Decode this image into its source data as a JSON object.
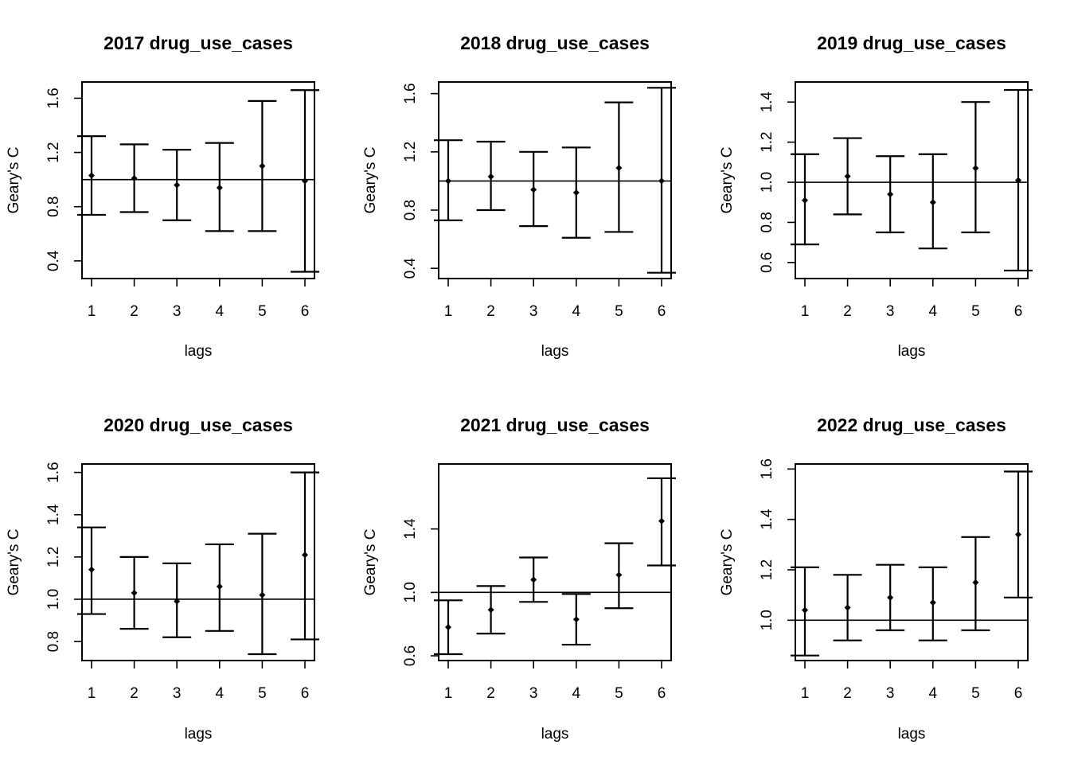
{
  "chart_data": [
    {
      "type": "scatter",
      "title": "2017 drug_use_cases",
      "xlabel": "lags",
      "ylabel": "Geary's C",
      "x": [
        1,
        2,
        3,
        4,
        5,
        6
      ],
      "x_ticks": [
        "1",
        "2",
        "3",
        "4",
        "5",
        "6"
      ],
      "y_ticks": [
        0.4,
        0.8,
        1.2,
        1.6
      ],
      "y_tick_labels": [
        "0.4",
        "0.8",
        "1.2",
        "1.6"
      ],
      "ylim": [
        0.27,
        1.72
      ],
      "reference_line": 1.0,
      "values": [
        1.03,
        1.01,
        0.96,
        0.94,
        1.1,
        0.99
      ],
      "lower": [
        0.74,
        0.76,
        0.7,
        0.62,
        0.62,
        0.32
      ],
      "upper": [
        1.32,
        1.26,
        1.22,
        1.27,
        1.58,
        1.66
      ],
      "grid": false
    },
    {
      "type": "scatter",
      "title": "2018 drug_use_cases",
      "xlabel": "lags",
      "ylabel": "Geary's C",
      "x": [
        1,
        2,
        3,
        4,
        5,
        6
      ],
      "x_ticks": [
        "1",
        "2",
        "3",
        "4",
        "5",
        "6"
      ],
      "y_ticks": [
        0.4,
        0.8,
        1.2,
        1.6
      ],
      "y_tick_labels": [
        "0.4",
        "0.8",
        "1.2",
        "1.6"
      ],
      "ylim": [
        0.33,
        1.68
      ],
      "reference_line": 1.0,
      "values": [
        1.0,
        1.03,
        0.94,
        0.92,
        1.09,
        1.0
      ],
      "lower": [
        0.73,
        0.8,
        0.69,
        0.61,
        0.65,
        0.37
      ],
      "upper": [
        1.28,
        1.27,
        1.2,
        1.23,
        1.54,
        1.64
      ],
      "grid": false
    },
    {
      "type": "scatter",
      "title": "2019 drug_use_cases",
      "xlabel": "lags",
      "ylabel": "Geary's C",
      "x": [
        1,
        2,
        3,
        4,
        5,
        6
      ],
      "x_ticks": [
        "1",
        "2",
        "3",
        "4",
        "5",
        "6"
      ],
      "y_ticks": [
        0.6,
        0.8,
        1.0,
        1.2,
        1.4
      ],
      "y_tick_labels": [
        "0.6",
        "0.8",
        "1.0",
        "1.2",
        "1.4"
      ],
      "ylim": [
        0.52,
        1.5
      ],
      "reference_line": 1.0,
      "values": [
        0.91,
        1.03,
        0.94,
        0.9,
        1.07,
        1.01
      ],
      "lower": [
        0.69,
        0.84,
        0.75,
        0.67,
        0.75,
        0.56
      ],
      "upper": [
        1.14,
        1.22,
        1.13,
        1.14,
        1.4,
        1.46
      ],
      "grid": false
    },
    {
      "type": "scatter",
      "title": "2020 drug_use_cases",
      "xlabel": "lags",
      "ylabel": "Geary's C",
      "x": [
        1,
        2,
        3,
        4,
        5,
        6
      ],
      "x_ticks": [
        "1",
        "2",
        "3",
        "4",
        "5",
        "6"
      ],
      "y_ticks": [
        0.8,
        1.0,
        1.2,
        1.4,
        1.6
      ],
      "y_tick_labels": [
        "0.8",
        "1.0",
        "1.2",
        "1.4",
        "1.6"
      ],
      "ylim": [
        0.71,
        1.64
      ],
      "reference_line": 1.0,
      "values": [
        1.14,
        1.03,
        0.99,
        1.06,
        1.02,
        1.21
      ],
      "lower": [
        0.93,
        0.86,
        0.82,
        0.85,
        0.74,
        0.81
      ],
      "upper": [
        1.34,
        1.2,
        1.17,
        1.26,
        1.31,
        1.6
      ],
      "grid": false
    },
    {
      "type": "scatter",
      "title": "2021 drug_use_cases",
      "xlabel": "lags",
      "ylabel": "Geary's C",
      "x": [
        1,
        2,
        3,
        4,
        5,
        6
      ],
      "x_ticks": [
        "1",
        "2",
        "3",
        "4",
        "5",
        "6"
      ],
      "y_ticks": [
        0.6,
        1.0,
        1.4
      ],
      "y_tick_labels": [
        "0.6",
        "1.0",
        "1.4"
      ],
      "ylim": [
        0.57,
        1.81
      ],
      "reference_line": 1.0,
      "values": [
        0.78,
        0.89,
        1.08,
        0.83,
        1.11,
        1.45
      ],
      "lower": [
        0.61,
        0.74,
        0.94,
        0.67,
        0.9,
        1.17
      ],
      "upper": [
        0.95,
        1.04,
        1.22,
        0.99,
        1.31,
        1.72
      ],
      "grid": false
    },
    {
      "type": "scatter",
      "title": "2022 drug_use_cases",
      "xlabel": "lags",
      "ylabel": "Geary's C",
      "x": [
        1,
        2,
        3,
        4,
        5,
        6
      ],
      "x_ticks": [
        "1",
        "2",
        "3",
        "4",
        "5",
        "6"
      ],
      "y_ticks": [
        1.0,
        1.2,
        1.4,
        1.6
      ],
      "y_tick_labels": [
        "1.0",
        "1.2",
        "1.4",
        "1.6"
      ],
      "ylim": [
        0.84,
        1.62
      ],
      "reference_line": 1.0,
      "values": [
        1.04,
        1.05,
        1.09,
        1.07,
        1.15,
        1.34
      ],
      "lower": [
        0.86,
        0.92,
        0.96,
        0.92,
        0.96,
        1.09
      ],
      "upper": [
        1.21,
        1.18,
        1.22,
        1.21,
        1.33,
        1.59
      ],
      "grid": false
    }
  ],
  "colors": {
    "ink": "#000000",
    "background": "#ffffff"
  }
}
